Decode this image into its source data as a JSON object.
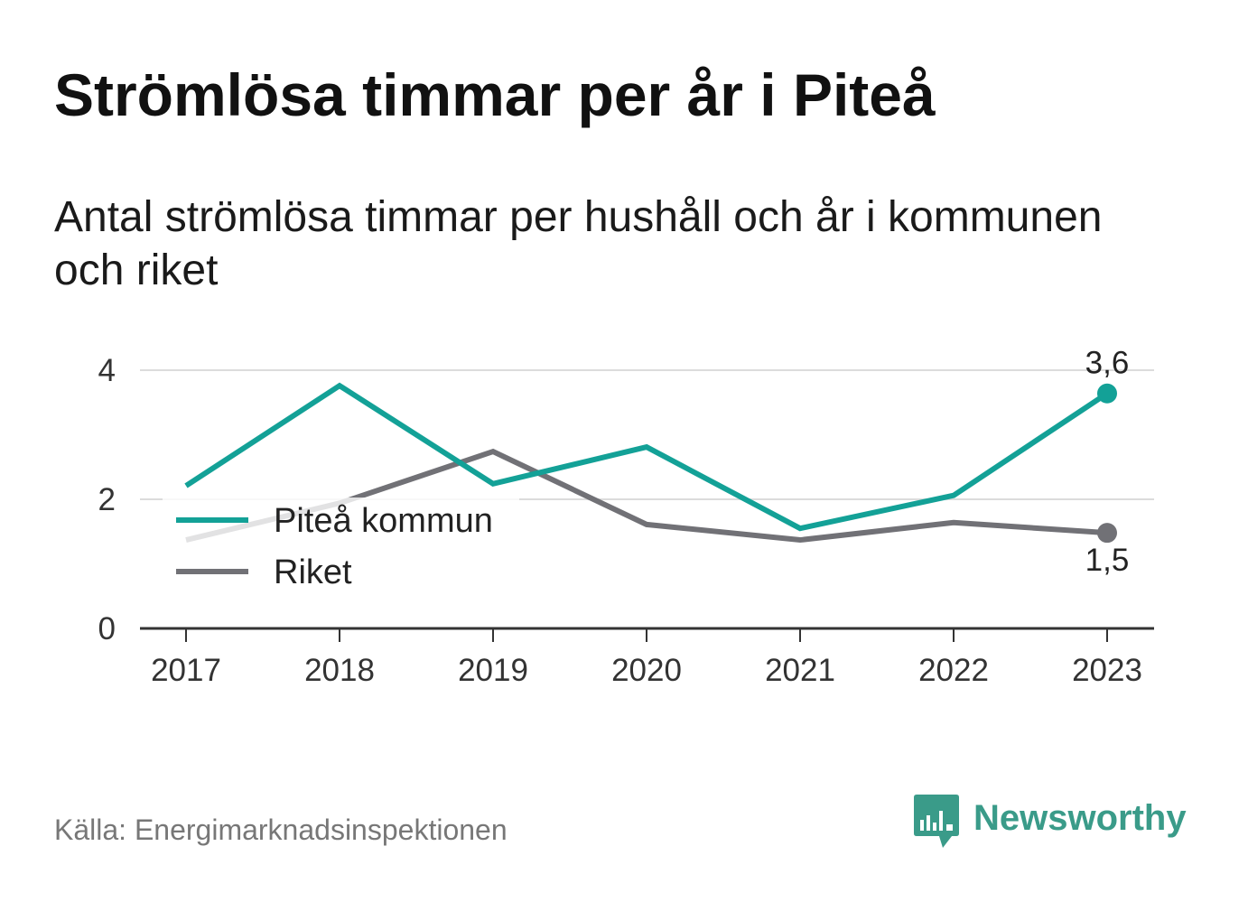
{
  "title": "Strömlösa timmar per år i Piteå",
  "subtitle": "Antal strömlösa timmar per hushåll och år i kommunen och riket",
  "source": "Källa: Energimarknadsinspektionen",
  "logo": {
    "text": "Newsworthy",
    "icon": "chart-speech-bubble-icon"
  },
  "colors": {
    "background": "#ffffff",
    "title": "#111111",
    "text": "#333333",
    "label": "#222222",
    "source": "#777777",
    "grid": "#dcdcdc",
    "axis": "#333333",
    "logo": "#3a9b89"
  },
  "chart_data": {
    "type": "line",
    "x": [
      "2017",
      "2018",
      "2019",
      "2020",
      "2021",
      "2022",
      "2023"
    ],
    "y_ticks": [
      0,
      2,
      4
    ],
    "ylim": [
      0,
      4
    ],
    "grid": true,
    "legend": {
      "placement": "top-left"
    },
    "series": [
      {
        "name": "Piteå kommun",
        "color": "#13a197",
        "values": [
          2.21,
          3.76,
          2.24,
          2.81,
          1.55,
          2.06,
          3.64
        ],
        "end_label": "3,6"
      },
      {
        "name": "Riket",
        "color": "#717176",
        "values": [
          1.37,
          1.94,
          2.74,
          1.61,
          1.37,
          1.64,
          1.48
        ],
        "end_label": "1,5"
      }
    ]
  }
}
